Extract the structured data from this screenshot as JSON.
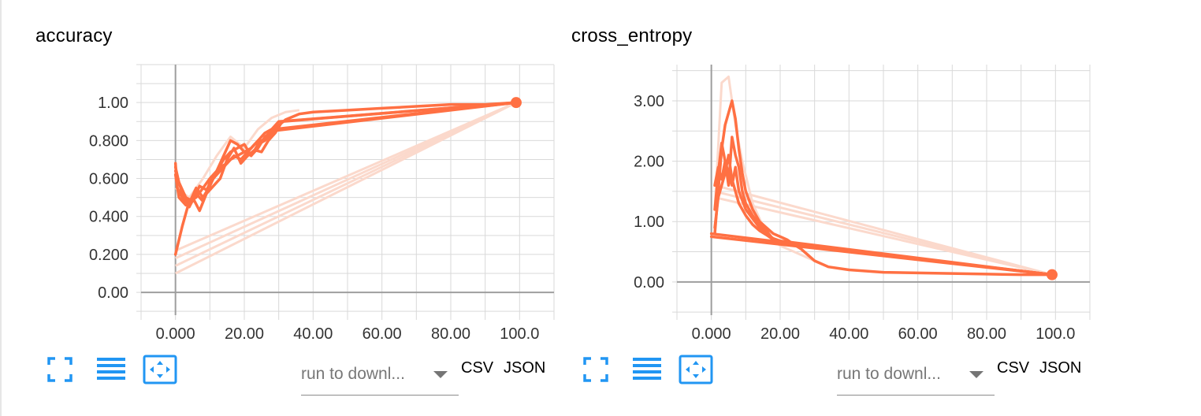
{
  "charts": [
    {
      "title": "accuracy",
      "xticks": [
        "0.000",
        "20.00",
        "40.00",
        "60.00",
        "80.00",
        "100.0"
      ],
      "yticks": [
        "0.00",
        "0.200",
        "0.400",
        "0.600",
        "0.800",
        "1.00"
      ],
      "run_select_placeholder": "run to downl...",
      "csv_label": "CSV",
      "json_label": "JSON",
      "icons": [
        "fullscreen-icon",
        "list-icon",
        "fit-domain-icon"
      ]
    },
    {
      "title": "cross_entropy",
      "xticks": [
        "0.000",
        "20.00",
        "40.00",
        "60.00",
        "80.00",
        "100.0"
      ],
      "yticks": [
        "0.00",
        "1.00",
        "2.00",
        "3.00"
      ],
      "run_select_placeholder": "run to downl...",
      "csv_label": "CSV",
      "json_label": "JSON",
      "icons": [
        "fullscreen-icon",
        "list-icon",
        "fit-domain-icon"
      ]
    }
  ],
  "chart_data": [
    {
      "type": "line",
      "title": "accuracy",
      "xlim": [
        -10,
        110
      ],
      "ylim": [
        -0.12,
        1.2
      ],
      "grid": true,
      "color": "#ff7043",
      "faint_color": "#fbd9cc",
      "series": [
        {
          "x": [
            0,
            0.5,
            2,
            4,
            6,
            8,
            10,
            12,
            14,
            16,
            18,
            20,
            22,
            24,
            26,
            28,
            30,
            32,
            36,
            40,
            50,
            60,
            70,
            80,
            90,
            99
          ],
          "y": [
            0.68,
            0.55,
            0.5,
            0.45,
            0.52,
            0.48,
            0.58,
            0.62,
            0.66,
            0.7,
            0.72,
            0.74,
            0.72,
            0.78,
            0.8,
            0.84,
            0.88,
            0.91,
            0.94,
            0.95,
            0.96,
            0.97,
            0.98,
            0.99,
            0.99,
            1.0
          ]
        },
        {
          "x": [
            0,
            1,
            3,
            5,
            7,
            9,
            11,
            13,
            15,
            17,
            19,
            21,
            23,
            25,
            27,
            29,
            31,
            99
          ],
          "y": [
            0.62,
            0.5,
            0.46,
            0.5,
            0.43,
            0.52,
            0.56,
            0.6,
            0.7,
            0.76,
            0.68,
            0.72,
            0.75,
            0.74,
            0.8,
            0.84,
            0.9,
            1.0
          ]
        },
        {
          "x": [
            0,
            2,
            4,
            6,
            8,
            10,
            12,
            14,
            16,
            18,
            20,
            22,
            24,
            26,
            28,
            30,
            99
          ],
          "y": [
            0.2,
            0.35,
            0.48,
            0.5,
            0.55,
            0.6,
            0.64,
            0.72,
            0.8,
            0.78,
            0.74,
            0.76,
            0.8,
            0.84,
            0.86,
            0.9,
            1.0
          ]
        },
        {
          "x": [
            0,
            1,
            3,
            5,
            7,
            9,
            11,
            13,
            15,
            17,
            19,
            21,
            23,
            25,
            27,
            29,
            99
          ],
          "y": [
            0.66,
            0.58,
            0.5,
            0.48,
            0.56,
            0.54,
            0.6,
            0.66,
            0.68,
            0.72,
            0.7,
            0.74,
            0.78,
            0.8,
            0.82,
            0.86,
            1.0
          ]
        },
        {
          "x": [
            0,
            2,
            4,
            6,
            8,
            10,
            12,
            14,
            16,
            18,
            20,
            22,
            24,
            26,
            28,
            99
          ],
          "y": [
            0.64,
            0.52,
            0.47,
            0.55,
            0.5,
            0.56,
            0.64,
            0.7,
            0.74,
            0.76,
            0.78,
            0.72,
            0.76,
            0.82,
            0.85,
            1.0
          ]
        }
      ],
      "faint_series": [
        {
          "x": [
            0,
            99
          ],
          "y": [
            0.1,
            1.0
          ]
        },
        {
          "x": [
            0,
            99
          ],
          "y": [
            0.14,
            1.0
          ]
        },
        {
          "x": [
            0,
            99
          ],
          "y": [
            0.18,
            1.0
          ]
        },
        {
          "x": [
            0,
            99
          ],
          "y": [
            0.22,
            1.0
          ]
        },
        {
          "x": [
            0,
            4,
            8,
            12,
            16,
            20,
            24,
            28,
            32,
            36
          ],
          "y": [
            0.55,
            0.5,
            0.6,
            0.72,
            0.82,
            0.76,
            0.86,
            0.92,
            0.95,
            0.96
          ]
        }
      ],
      "end_marker": {
        "x": 99,
        "y": 1.0
      }
    },
    {
      "type": "line",
      "title": "cross_entropy",
      "xlim": [
        -10,
        110
      ],
      "ylim": [
        -0.55,
        3.6
      ],
      "grid": true,
      "color": "#ff7043",
      "faint_color": "#fbd9cc",
      "series": [
        {
          "x": [
            0,
            99
          ],
          "y": [
            0.75,
            0.12
          ]
        },
        {
          "x": [
            0,
            99
          ],
          "y": [
            0.8,
            0.12
          ]
        },
        {
          "x": [
            1,
            2,
            3,
            4,
            5,
            6,
            7,
            8,
            9,
            10,
            12,
            14,
            16,
            18,
            20,
            22,
            24,
            26,
            28,
            30,
            34,
            40,
            50,
            60,
            70,
            80,
            90,
            99
          ],
          "y": [
            0.8,
            1.5,
            2.2,
            2.6,
            2.8,
            3.0,
            2.7,
            2.2,
            1.8,
            1.5,
            1.2,
            1.0,
            0.9,
            0.8,
            0.75,
            0.7,
            0.62,
            0.55,
            0.45,
            0.35,
            0.25,
            0.2,
            0.16,
            0.15,
            0.14,
            0.13,
            0.12,
            0.12
          ]
        },
        {
          "x": [
            1,
            2,
            3,
            4,
            5,
            6,
            7,
            8,
            9,
            10,
            12,
            14,
            16,
            18,
            20,
            99
          ],
          "y": [
            1.2,
            1.8,
            2.3,
            2.0,
            1.6,
            2.4,
            2.1,
            1.9,
            1.5,
            1.3,
            1.1,
            0.95,
            0.85,
            0.7,
            0.65,
            0.12
          ]
        },
        {
          "x": [
            1,
            2,
            3,
            4,
            5,
            6,
            7,
            8,
            10,
            12,
            14,
            16,
            18,
            20,
            99
          ],
          "y": [
            1.6,
            1.9,
            1.7,
            2.0,
            1.8,
            1.6,
            1.9,
            1.5,
            1.2,
            1.05,
            0.9,
            0.8,
            0.72,
            0.68,
            0.12
          ]
        },
        {
          "x": [
            1,
            2,
            3,
            4,
            5,
            6,
            7,
            8,
            10,
            12,
            14,
            16,
            18,
            20,
            99
          ],
          "y": [
            0.9,
            1.4,
            1.6,
            1.8,
            2.1,
            1.7,
            1.5,
            1.3,
            1.1,
            0.95,
            0.85,
            0.78,
            0.7,
            0.66,
            0.12
          ]
        }
      ],
      "faint_series": [
        {
          "x": [
            1,
            99
          ],
          "y": [
            1.6,
            0.12
          ]
        },
        {
          "x": [
            1,
            99
          ],
          "y": [
            1.5,
            0.12
          ]
        },
        {
          "x": [
            1,
            99
          ],
          "y": [
            1.4,
            0.12
          ]
        },
        {
          "x": [
            1,
            3,
            5,
            7,
            9,
            12,
            16,
            20,
            24,
            28,
            32
          ],
          "y": [
            1.2,
            3.3,
            3.4,
            2.6,
            2.0,
            1.3,
            0.8,
            0.6,
            0.5,
            0.4,
            0.3
          ]
        }
      ],
      "end_marker": {
        "x": 99,
        "y": 0.12
      }
    }
  ]
}
